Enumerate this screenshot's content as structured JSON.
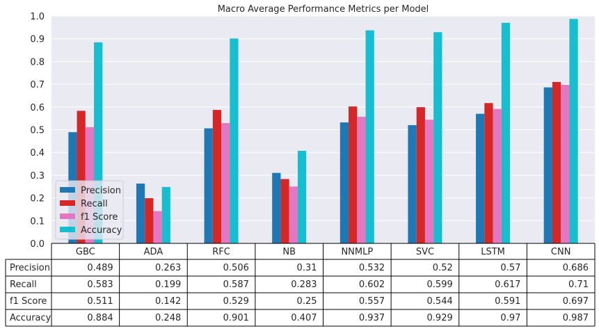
{
  "chart_data": {
    "type": "bar",
    "title": "Macro Average Performance Metrics per Model",
    "xlabel": "",
    "ylabel": "",
    "ylim": [
      0,
      1.0
    ],
    "yticks": [
      "0.0",
      "0.1",
      "0.2",
      "0.3",
      "0.4",
      "0.5",
      "0.6",
      "0.7",
      "0.8",
      "0.9",
      "1.0"
    ],
    "grid": true,
    "legend_position": "lower-left",
    "categories": [
      "GBC",
      "ADA",
      "RFC",
      "NB",
      "NNMLP",
      "SVC",
      "LSTM",
      "CNN"
    ],
    "series": [
      {
        "name": "Precision",
        "color": "#1f77b4",
        "values": [
          0.489,
          0.263,
          0.506,
          0.31,
          0.532,
          0.52,
          0.57,
          0.686
        ],
        "labels": [
          "0.489",
          "0.263",
          "0.506",
          "0.31",
          "0.532",
          "0.52",
          "0.57",
          "0.686"
        ]
      },
      {
        "name": "Recall",
        "color": "#d62728",
        "values": [
          0.583,
          0.199,
          0.587,
          0.283,
          0.602,
          0.599,
          0.617,
          0.71
        ],
        "labels": [
          "0.583",
          "0.199",
          "0.587",
          "0.283",
          "0.602",
          "0.599",
          "0.617",
          "0.71"
        ]
      },
      {
        "name": "f1 Score",
        "color": "#e377c2",
        "values": [
          0.511,
          0.142,
          0.529,
          0.25,
          0.557,
          0.544,
          0.591,
          0.697
        ],
        "labels": [
          "0.511",
          "0.142",
          "0.529",
          "0.25",
          "0.557",
          "0.544",
          "0.591",
          "0.697"
        ]
      },
      {
        "name": "Accuracy",
        "color": "#17becf",
        "values": [
          0.884,
          0.248,
          0.901,
          0.407,
          0.937,
          0.929,
          0.97,
          0.987
        ],
        "labels": [
          "0.884",
          "0.248",
          "0.901",
          "0.407",
          "0.937",
          "0.929",
          "0.97",
          "0.987"
        ]
      }
    ]
  }
}
